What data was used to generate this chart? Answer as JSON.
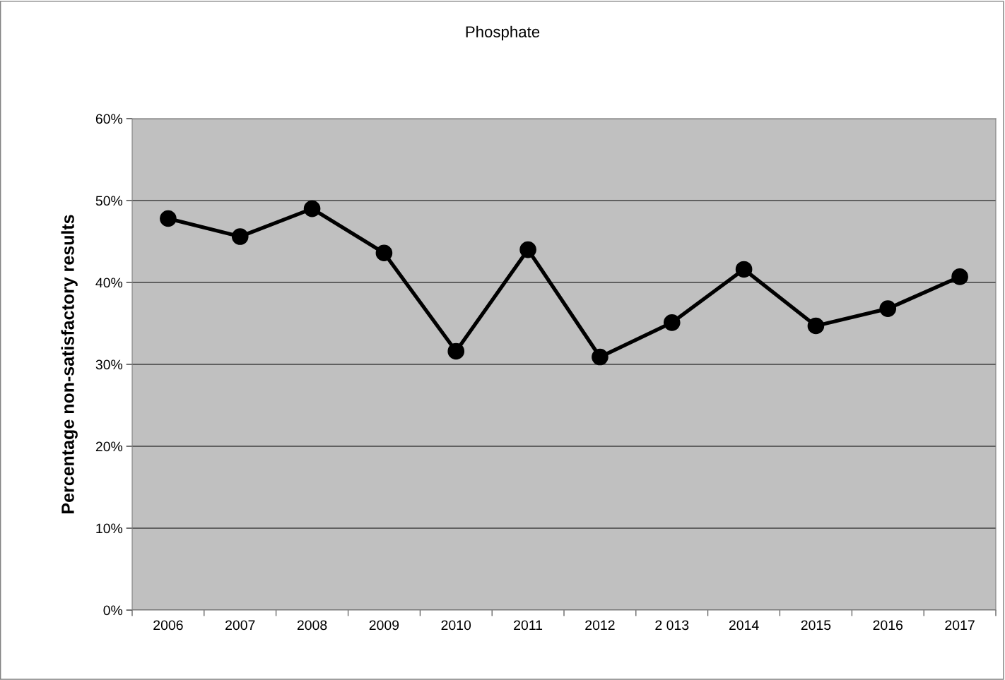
{
  "chart_data": {
    "type": "line",
    "title": "Phosphate",
    "ylabel": "Percentage non-satisfactory results",
    "categories": [
      "2006",
      "2007",
      "2008",
      "2009",
      "2010",
      "2011",
      "2012",
      "2 013",
      "2014",
      "2015",
      "2016",
      "2017"
    ],
    "series": [
      {
        "color": "#000000",
        "values": [
          47.8,
          45.6,
          49.0,
          43.6,
          31.6,
          44.0,
          30.9,
          35.1,
          41.6,
          34.7,
          36.8,
          40.7
        ]
      }
    ],
    "ylim": [
      0,
      60
    ],
    "yticks": [
      {
        "value": 0,
        "label": "0%"
      },
      {
        "value": 10,
        "label": "10%"
      },
      {
        "value": 20,
        "label": "20%"
      },
      {
        "value": 30,
        "label": "30%"
      },
      {
        "value": 40,
        "label": "40%"
      },
      {
        "value": 50,
        "label": "50%"
      },
      {
        "value": 60,
        "label": "60%"
      }
    ],
    "grid": "y",
    "marker": "circle",
    "line_style": "solid"
  }
}
